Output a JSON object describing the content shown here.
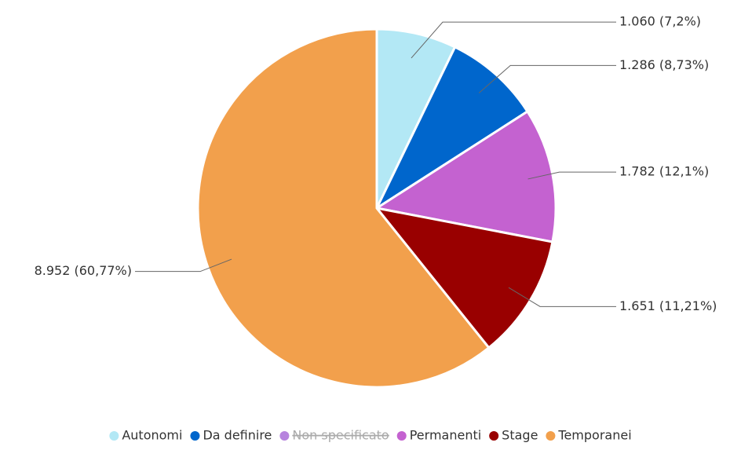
{
  "chart_data": {
    "type": "pie",
    "categories": [
      "Autonomi",
      "Da definire",
      "Non specificato",
      "Permanenti",
      "Stage",
      "Temporanei"
    ],
    "values": [
      1060,
      1286,
      null,
      1782,
      1651,
      8952
    ],
    "value_labels": [
      "1.060 (7,2%)",
      "1.286 (8,73%)",
      null,
      "1.782 (12,1%)",
      "1.651 (11,21%)",
      "8.952 (60,77%)"
    ],
    "colors": [
      "#b3e8f5",
      "#0066cc",
      "#a565d6",
      "#c462d0",
      "#990000",
      "#f2a04c"
    ],
    "hidden": [
      false,
      false,
      true,
      false,
      false,
      false
    ]
  }
}
